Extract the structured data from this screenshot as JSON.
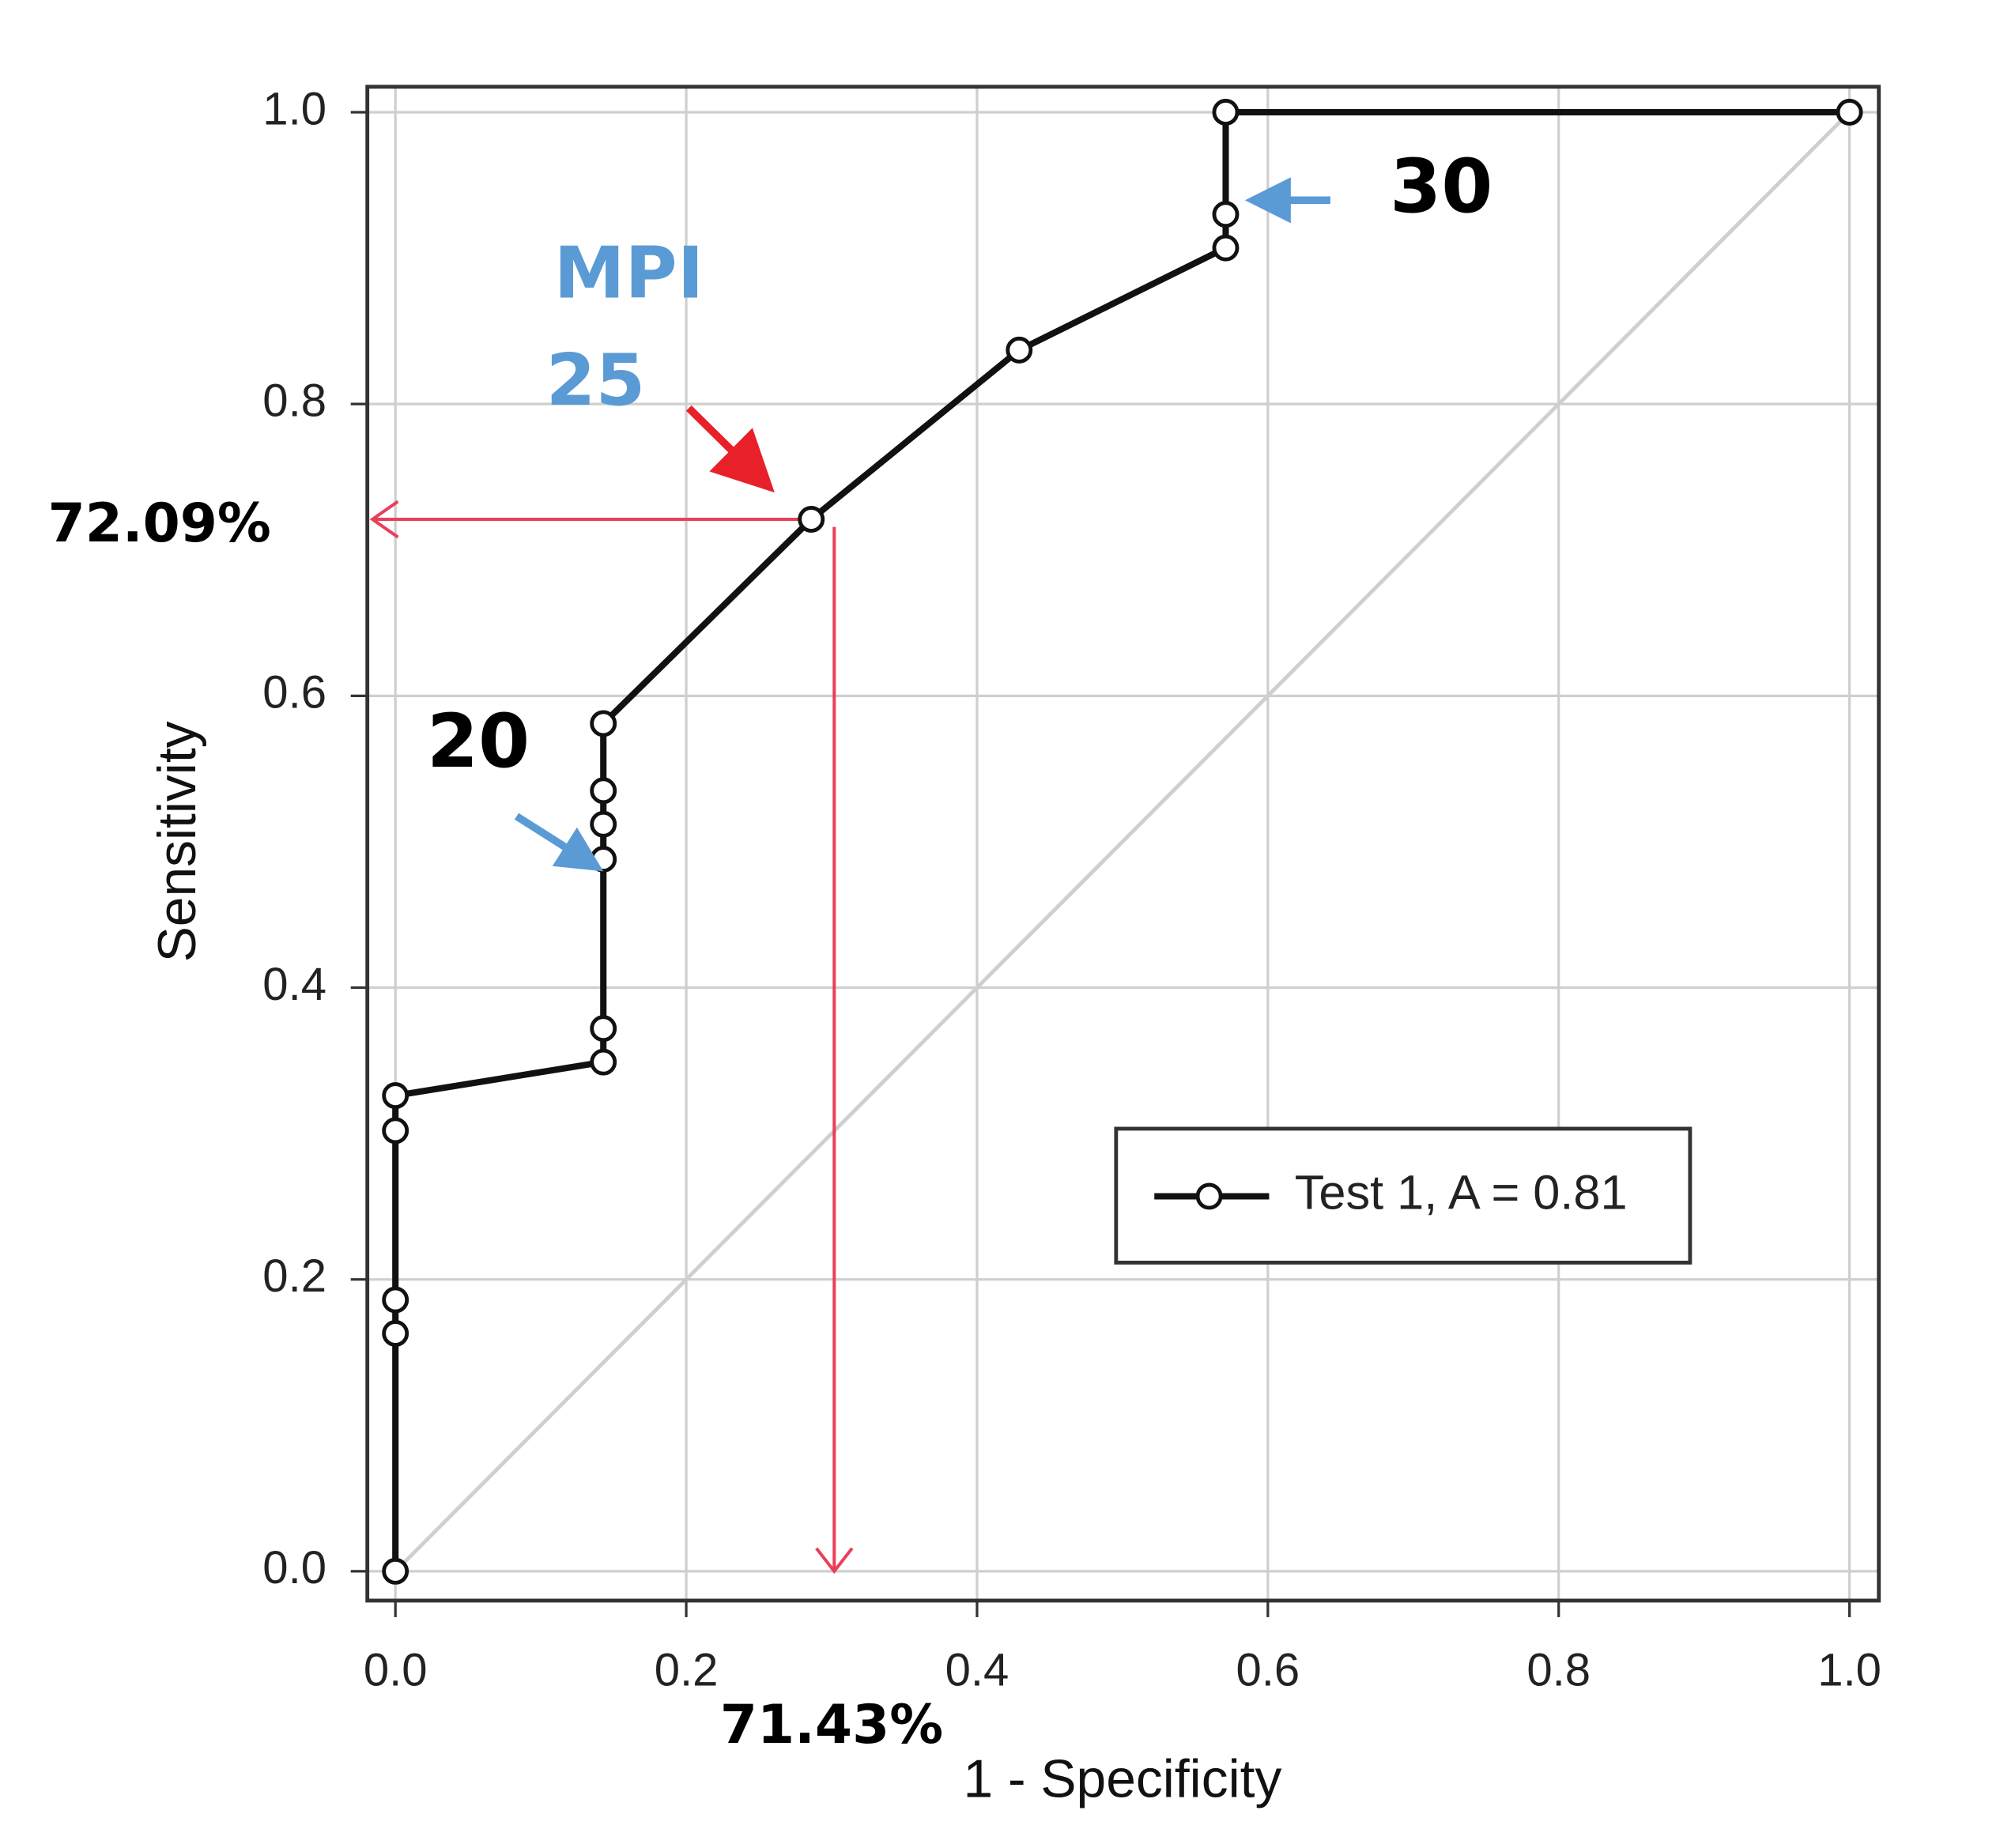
{
  "chart_data": {
    "type": "line",
    "xlabel": "1 - Specificity",
    "ylabel": "Sensitivity",
    "x": [
      0,
      0,
      0,
      0,
      0,
      0.143,
      0.143,
      0.143,
      0.143,
      0.143,
      0.143,
      0.286,
      0.429,
      0.571,
      0.571,
      0.571,
      1
    ],
    "series": [
      {
        "name": "Test 1, A = 0.81",
        "color": "#111111",
        "values": [
          0,
          0.163,
          0.186,
          0.302,
          0.326,
          0.349,
          0.372,
          0.488,
          0.512,
          0.535,
          0.581,
          0.721,
          0.837,
          0.907,
          0.93,
          1,
          1
        ]
      }
    ],
    "xlim": [
      0,
      1
    ],
    "ylim": [
      0,
      1
    ],
    "xticks": [
      {
        "value": 0,
        "label": "0.0"
      },
      0.2,
      0.4,
      0.6,
      0.8,
      {
        "value": 1,
        "label": "1.0"
      }
    ],
    "yticks": [
      {
        "value": 0,
        "label": "0.0"
      },
      0.2,
      0.4,
      0.6,
      0.8,
      {
        "value": 1,
        "label": "1.0"
      }
    ],
    "grid": true,
    "annotations": {
      "mpi": "MPI",
      "cut_25": "25",
      "cut_20": "20",
      "cut_30": "30",
      "sensitivity": "72.09%",
      "specificity": "71.43%"
    }
  }
}
